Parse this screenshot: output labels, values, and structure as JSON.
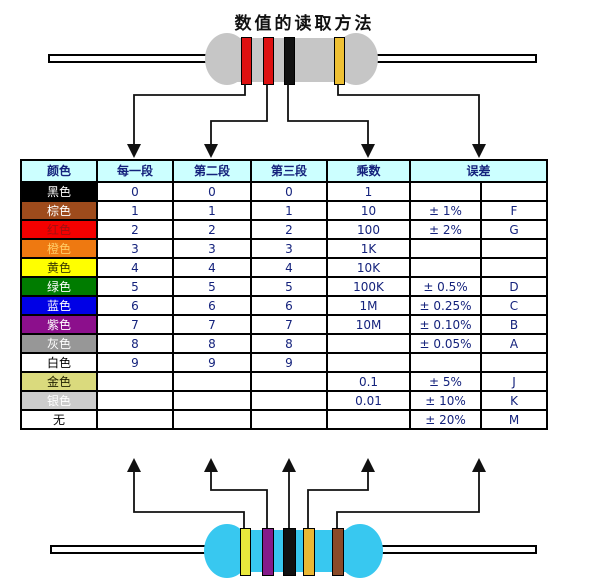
{
  "title": "数值的读取方法",
  "table": {
    "headers": [
      "颜色",
      "每一段",
      "第二段",
      "第三段",
      "乘数",
      "误差"
    ],
    "header_bg": "#ccffff",
    "value_color": "#14227c",
    "rows": [
      {
        "name": "黑色",
        "bg": "#000000",
        "fg": "#ffffff",
        "band1": "0",
        "band2": "0",
        "band3": "0",
        "multiplier": "1",
        "tolerance": "",
        "code": ""
      },
      {
        "name": "棕色",
        "bg": "#9e4b1c",
        "fg": "#ffffff",
        "band1": "1",
        "band2": "1",
        "band3": "1",
        "multiplier": "10",
        "tolerance": "± 1%",
        "code": "F"
      },
      {
        "name": "红色",
        "bg": "#f40000",
        "fg": "#a01010",
        "band1": "2",
        "band2": "2",
        "band3": "2",
        "multiplier": "100",
        "tolerance": "± 2%",
        "code": "G"
      },
      {
        "name": "橙色",
        "bg": "#ee7911",
        "fg": "#ffcc66",
        "band1": "3",
        "band2": "3",
        "band3": "3",
        "multiplier": "1K",
        "tolerance": "",
        "code": ""
      },
      {
        "name": "黄色",
        "bg": "#ffff00",
        "fg": "#3a3a00",
        "band1": "4",
        "band2": "4",
        "band3": "4",
        "multiplier": "10K",
        "tolerance": "",
        "code": ""
      },
      {
        "name": "绿色",
        "bg": "#007c00",
        "fg": "#ffffff",
        "band1": "5",
        "band2": "5",
        "band3": "5",
        "multiplier": "100K",
        "tolerance": "± 0.5%",
        "code": "D"
      },
      {
        "name": "蓝色",
        "bg": "#0000e6",
        "fg": "#ffffff",
        "band1": "6",
        "band2": "6",
        "band3": "6",
        "multiplier": "1M",
        "tolerance": "± 0.25%",
        "code": "C"
      },
      {
        "name": "紫色",
        "bg": "#8c0f8c",
        "fg": "#ffffff",
        "band1": "7",
        "band2": "7",
        "band3": "7",
        "multiplier": "10M",
        "tolerance": "± 0.10%",
        "code": "B"
      },
      {
        "name": "灰色",
        "bg": "#979797",
        "fg": "#ffffff",
        "band1": "8",
        "band2": "8",
        "band3": "8",
        "multiplier": "",
        "tolerance": "± 0.05%",
        "code": "A"
      },
      {
        "name": "白色",
        "bg": "#ffffff",
        "fg": "#000000",
        "band1": "9",
        "band2": "9",
        "band3": "9",
        "multiplier": "",
        "tolerance": "",
        "code": ""
      },
      {
        "name": "金色",
        "bg": "#dada7d",
        "fg": "#222200",
        "band1": "",
        "band2": "",
        "band3": "",
        "multiplier": "0.1",
        "tolerance": "± 5%",
        "code": "J"
      },
      {
        "name": "银色",
        "bg": "#cccccc",
        "fg": "#ffffff",
        "band1": "",
        "band2": "",
        "band3": "",
        "multiplier": "0.01",
        "tolerance": "± 10%",
        "code": "K"
      },
      {
        "name": "无",
        "bg": "#ffffff",
        "fg": "#000000",
        "band1": "",
        "band2": "",
        "band3": "",
        "multiplier": "",
        "tolerance": "± 20%",
        "code": "M"
      }
    ]
  },
  "resistor_top": {
    "body_color": "#c6c6c6",
    "bands": [
      {
        "color_name": "red",
        "hex": "#dd1111"
      },
      {
        "color_name": "red",
        "hex": "#dd1111"
      },
      {
        "color_name": "black",
        "hex": "#111111"
      },
      {
        "color_name": "gold",
        "hex": "#eec033"
      }
    ]
  },
  "resistor_bottom": {
    "body_color": "#38c8f0",
    "bands": [
      {
        "color_name": "yellow",
        "hex": "#e9e93c"
      },
      {
        "color_name": "purple",
        "hex": "#851b8a"
      },
      {
        "color_name": "black",
        "hex": "#111111"
      },
      {
        "color_name": "gold",
        "hex": "#eab835"
      },
      {
        "color_name": "brown",
        "hex": "#8a4a28"
      }
    ]
  }
}
